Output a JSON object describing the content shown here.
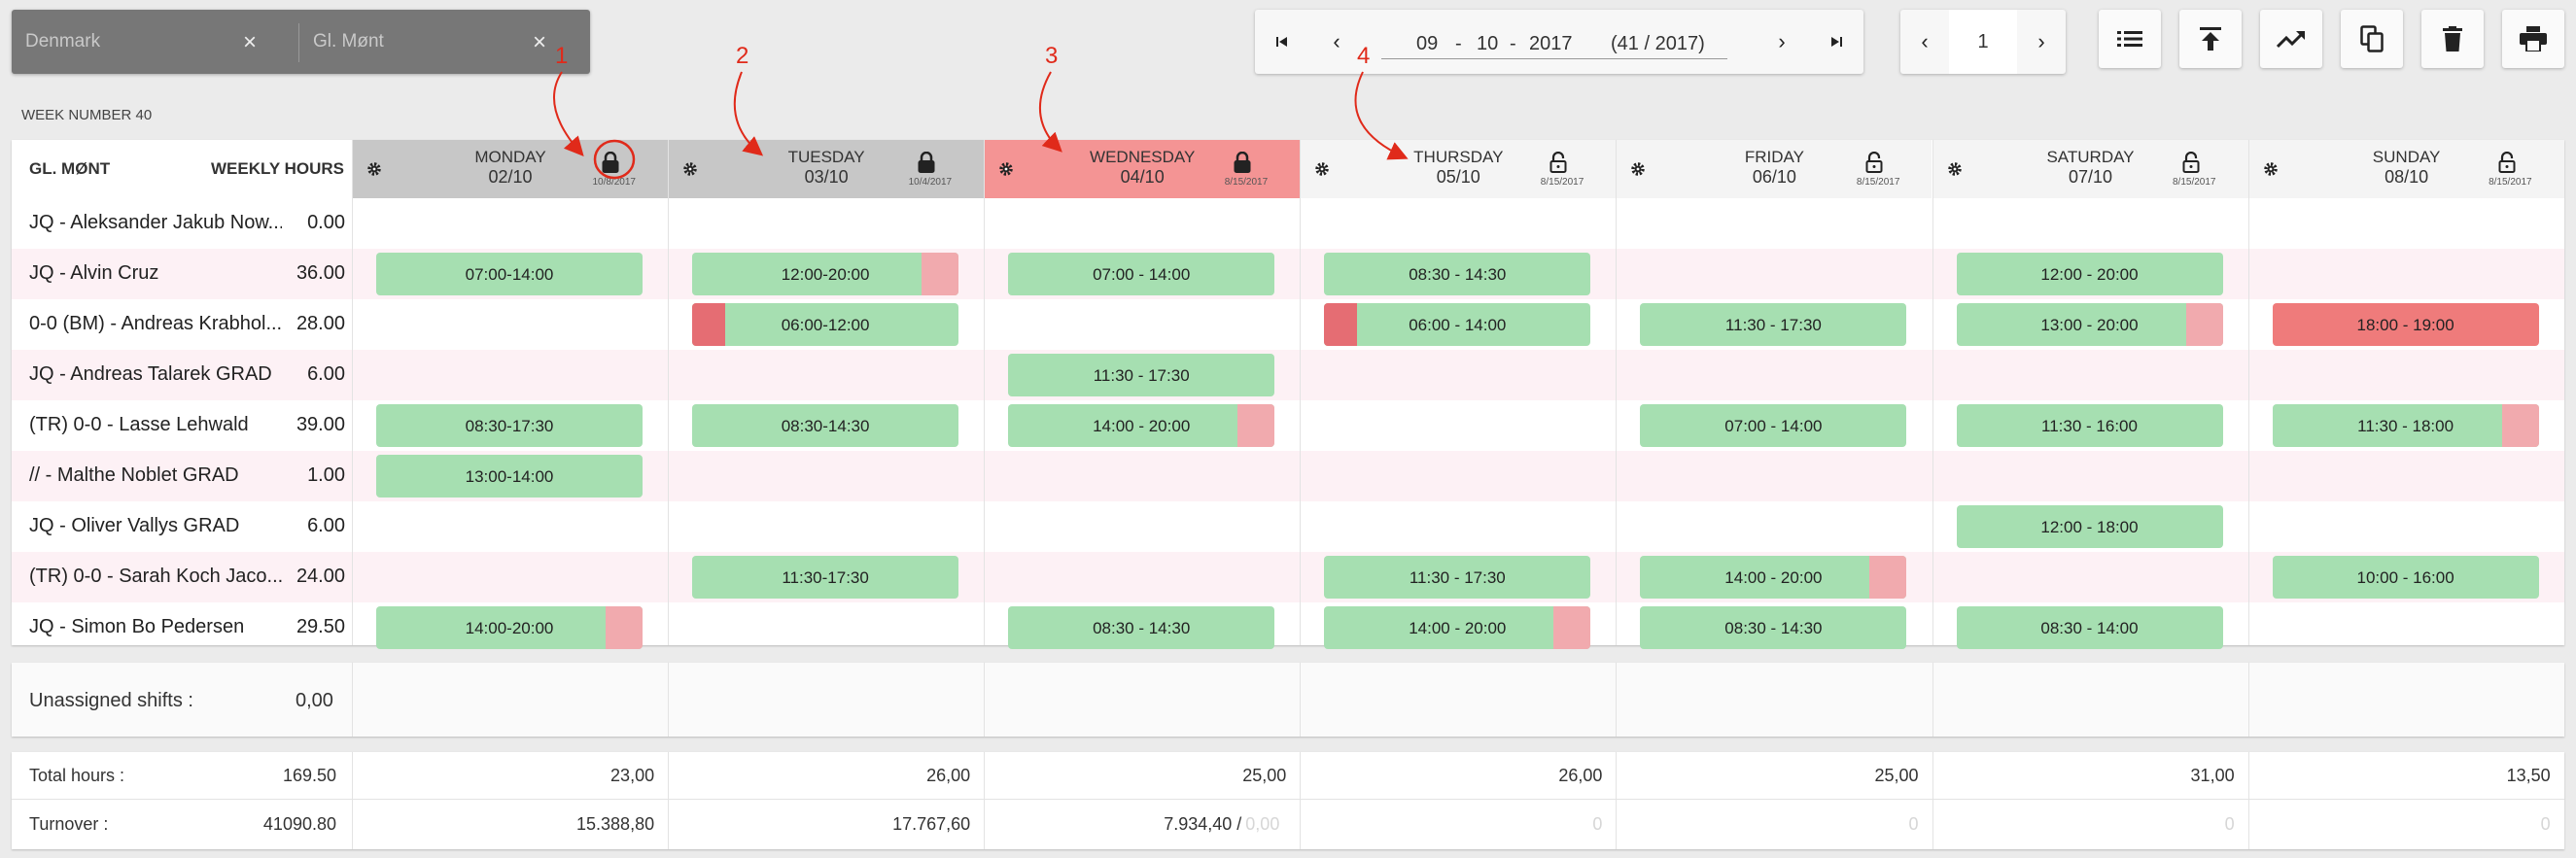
{
  "filters": {
    "country": "Denmark",
    "location": "Gl. Mønt",
    "close_symbol": "×"
  },
  "date_nav": {
    "day": "09",
    "month": "10",
    "year": "2017",
    "sep": "-",
    "week_label": "(41 / 2017)",
    "first": "⏮",
    "prev": "‹",
    "next": "›",
    "last": "⏭"
  },
  "page_nav": {
    "prev": "‹",
    "page": "1",
    "next": "›"
  },
  "toolbar_icons": [
    "list-icon",
    "upload-icon",
    "trending-up-icon",
    "copy-icon",
    "trash-icon",
    "print-icon"
  ],
  "week_label": "WEEK NUMBER 40",
  "header": {
    "location": "GL. MØNT",
    "weekly_hours": "WEEKLY HOURS"
  },
  "days": [
    {
      "name": "MONDAY",
      "date": "02/10",
      "lock_date": "10/8/2017",
      "highlight": false,
      "lock_circled": true
    },
    {
      "name": "TUESDAY",
      "date": "03/10",
      "lock_date": "10/4/2017",
      "highlight": false,
      "lock_circled": false
    },
    {
      "name": "WEDNESDAY",
      "date": "04/10",
      "lock_date": "8/15/2017",
      "highlight": true,
      "lock_circled": false
    },
    {
      "name": "THURSDAY",
      "date": "05/10",
      "lock_date": "8/15/2017",
      "highlight": false,
      "lock_circled": false
    },
    {
      "name": "FRIDAY",
      "date": "06/10",
      "lock_date": "8/15/2017",
      "highlight": false,
      "lock_circled": false
    },
    {
      "name": "SATURDAY",
      "date": "07/10",
      "lock_date": "8/15/2017",
      "highlight": false,
      "lock_circled": false
    },
    {
      "name": "SUNDAY",
      "date": "08/10",
      "lock_date": "8/15/2017",
      "highlight": false,
      "lock_circled": false
    }
  ],
  "employees": [
    {
      "name": "JQ - Aleksander Jakub Now...",
      "hours": "0.00",
      "shifts": []
    },
    {
      "name": "JQ - Alvin Cruz",
      "hours": "36.00",
      "shifts": [
        {
          "day": 0,
          "label": "07:00-14:00"
        },
        {
          "day": 1,
          "label": "12:00-20:00",
          "right_pink": true
        },
        {
          "day": 2,
          "label": "07:00 - 14:00"
        },
        {
          "day": 3,
          "label": "08:30 - 14:30"
        },
        {
          "day": 5,
          "label": "12:00 - 20:00"
        }
      ]
    },
    {
      "name": "0-0 (BM) - Andreas Krabhol...",
      "hours": "28.00",
      "shifts": [
        {
          "day": 1,
          "label": "06:00-12:00",
          "left_red": true
        },
        {
          "day": 3,
          "label": "06:00 - 14:00",
          "left_red": true
        },
        {
          "day": 4,
          "label": "11:30 - 17:30"
        },
        {
          "day": 5,
          "label": "13:00 - 20:00",
          "right_pink": true
        },
        {
          "day": 6,
          "label": "18:00 - 19:00",
          "red": true
        }
      ]
    },
    {
      "name": "JQ - Andreas Talarek GRAD",
      "hours": "6.00",
      "shifts": [
        {
          "day": 2,
          "label": "11:30 - 17:30"
        }
      ]
    },
    {
      "name": "(TR) 0-0 - Lasse Lehwald",
      "hours": "39.00",
      "shifts": [
        {
          "day": 0,
          "label": "08:30-17:30"
        },
        {
          "day": 1,
          "label": "08:30-14:30"
        },
        {
          "day": 2,
          "label": "14:00 - 20:00",
          "right_pink": true
        },
        {
          "day": 4,
          "label": "07:00 - 14:00"
        },
        {
          "day": 5,
          "label": "11:30 - 16:00"
        },
        {
          "day": 6,
          "label": "11:30 - 18:00",
          "right_pink": true
        }
      ]
    },
    {
      "name": "// - Malthe Noblet GRAD",
      "hours": "1.00",
      "shifts": [
        {
          "day": 0,
          "label": "13:00-14:00"
        }
      ]
    },
    {
      "name": "JQ - Oliver Vallys GRAD",
      "hours": "6.00",
      "shifts": [
        {
          "day": 5,
          "label": "12:00 - 18:00"
        }
      ]
    },
    {
      "name": "(TR) 0-0 - Sarah Koch Jaco...",
      "hours": "24.00",
      "shifts": [
        {
          "day": 1,
          "label": "11:30-17:30"
        },
        {
          "day": 3,
          "label": "11:30 - 17:30"
        },
        {
          "day": 4,
          "label": "14:00 - 20:00",
          "right_pink": true
        },
        {
          "day": 6,
          "label": "10:00 - 16:00"
        }
      ]
    },
    {
      "name": "JQ - Simon Bo Pedersen",
      "hours": "29.50",
      "shifts": [
        {
          "day": 0,
          "label": "14:00-20:00",
          "right_pink": true
        },
        {
          "day": 2,
          "label": "08:30 - 14:30"
        },
        {
          "day": 3,
          "label": "14:00 - 20:00",
          "right_pink": true
        },
        {
          "day": 4,
          "label": "08:30 - 14:30"
        },
        {
          "day": 5,
          "label": "08:30 - 14:00"
        }
      ]
    }
  ],
  "unassigned": {
    "label": "Unassigned shifts :",
    "value": "0,00"
  },
  "totals": {
    "hours_label": "Total hours :",
    "hours_total": "169.50",
    "hours": [
      "23,00",
      "26,00",
      "25,00",
      "26,00",
      "25,00",
      "31,00",
      "13,50"
    ],
    "turnover_label": "Turnover :",
    "turnover_total": "41090.80",
    "turnover": [
      "15.388,80",
      "17.767,60",
      "7.934,40 /",
      "0",
      "0",
      "0",
      "0"
    ],
    "turnover_extra": "0,00"
  },
  "annotations": [
    "1",
    "2",
    "3",
    "4"
  ],
  "colors": {
    "shift_green": "#a6dfb1",
    "shift_pink": "#f1aaae",
    "shift_red": "#ef7b7b",
    "row_pink": "#fdf1f5",
    "wednesday": "#f49494",
    "header_gray": "#c7c7c7"
  }
}
